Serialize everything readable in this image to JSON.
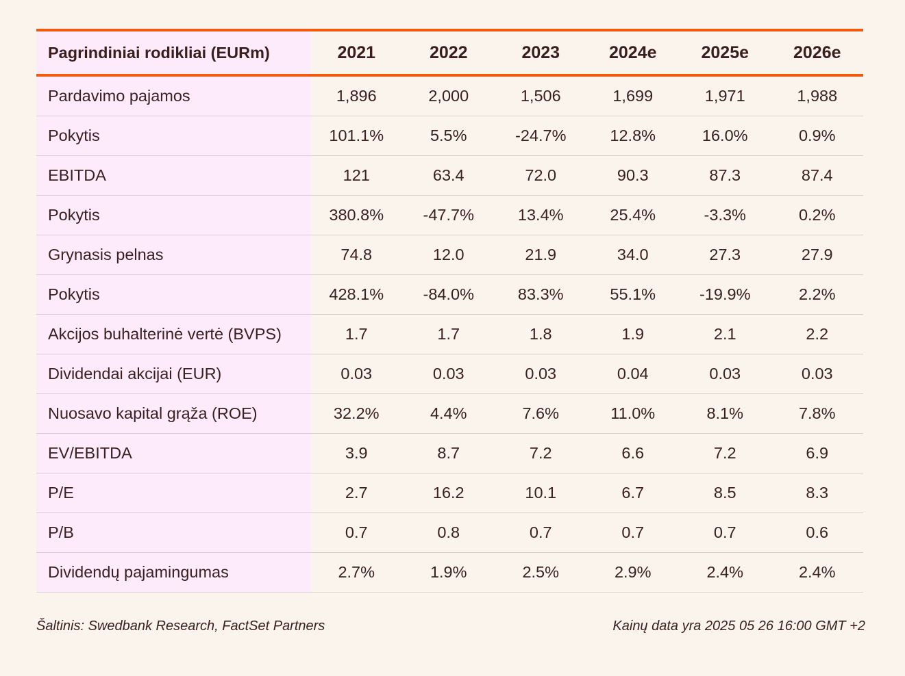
{
  "chart_data": {
    "type": "table",
    "header_label": "Pagrindiniai rodikliai (EURm)",
    "columns": [
      "2021",
      "2022",
      "2023",
      "2024e",
      "2025e",
      "2026e"
    ],
    "rows": [
      {
        "label": "Pardavimo pajamos",
        "values": [
          "1,896",
          "2,000",
          "1,506",
          "1,699",
          "1,971",
          "1,988"
        ]
      },
      {
        "label": "Pokytis",
        "values": [
          "101.1%",
          "5.5%",
          "-24.7%",
          "12.8%",
          "16.0%",
          "0.9%"
        ]
      },
      {
        "label": "EBITDA",
        "values": [
          "121",
          "63.4",
          "72.0",
          "90.3",
          "87.3",
          "87.4"
        ]
      },
      {
        "label": "Pokytis",
        "values": [
          "380.8%",
          "-47.7%",
          "13.4%",
          "25.4%",
          "-3.3%",
          "0.2%"
        ]
      },
      {
        "label": "Grynasis pelnas",
        "values": [
          "74.8",
          "12.0",
          "21.9",
          "34.0",
          "27.3",
          "27.9"
        ]
      },
      {
        "label": "Pokytis",
        "values": [
          "428.1%",
          "-84.0%",
          "83.3%",
          "55.1%",
          "-19.9%",
          "2.2%"
        ]
      },
      {
        "label": "Akcijos buhalterinė vertė (BVPS)",
        "values": [
          "1.7",
          "1.7",
          "1.8",
          "1.9",
          "2.1",
          "2.2"
        ]
      },
      {
        "label": "Dividendai akcijai (EUR)",
        "values": [
          "0.03",
          "0.03",
          "0.03",
          "0.04",
          "0.03",
          "0.03"
        ]
      },
      {
        "label": "Nuosavo kapital grąža (ROE)",
        "values": [
          "32.2%",
          "4.4%",
          "7.6%",
          "11.0%",
          "8.1%",
          "7.8%"
        ]
      },
      {
        "label": "EV/EBITDA",
        "values": [
          "3.9",
          "8.7",
          "7.2",
          "6.6",
          "7.2",
          "6.9"
        ]
      },
      {
        "label": "P/E",
        "values": [
          "2.7",
          "16.2",
          "10.1",
          "6.7",
          "8.5",
          "8.3"
        ]
      },
      {
        "label": "P/B",
        "values": [
          "0.7",
          "0.8",
          "0.7",
          "0.7",
          "0.7",
          "0.6"
        ]
      },
      {
        "label": "Dividendų pajamingumas",
        "values": [
          "2.7%",
          "1.9%",
          "2.5%",
          "2.9%",
          "2.4%",
          "2.4%"
        ]
      }
    ]
  },
  "footer": {
    "source": "Šaltinis: Swedbank Research, FactSet Partners",
    "price_date": "Kainų data yra 2025 05 26 16:00 GMT +2"
  },
  "colors": {
    "accent_line": "#f15a0f",
    "label_column_bg": "#fdeafb",
    "page_bg": "#fbf4ec",
    "text": "#3a2020"
  }
}
